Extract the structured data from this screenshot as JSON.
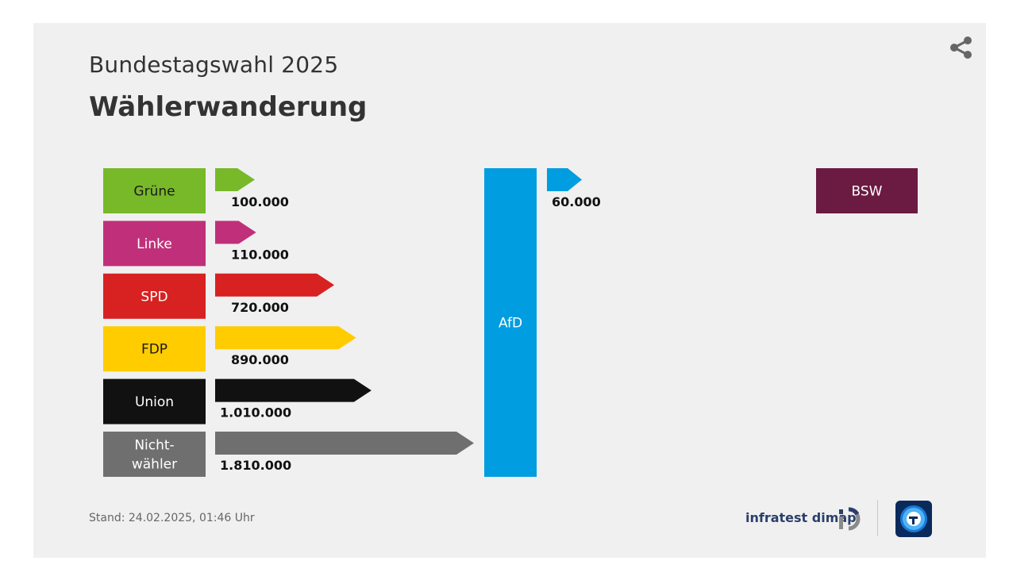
{
  "header": {
    "subtitle": "Bundestagswahl 2025",
    "title": "Wählerwanderung"
  },
  "footer": {
    "stand": "Stand:  24.02.2025, 01:46 Uhr",
    "source": "infratest dimap"
  },
  "icons": {
    "share": "share-icon",
    "infratest": "infratest-dimap-logo-icon",
    "tagesschau": "tagesschau-logo-icon"
  },
  "chart_data": {
    "type": "flow",
    "title": "Wählerwanderung",
    "target": {
      "label": "AfD",
      "color": "#009de0"
    },
    "series": [
      {
        "name": "Grüne",
        "value": 100000,
        "label": "100.000",
        "color": "#78b929",
        "textColor": "#1a1a1a",
        "direction": "to AfD"
      },
      {
        "name": "Linke",
        "value": 110000,
        "label": "110.000",
        "color": "#c0307a",
        "textColor": "#ffffff",
        "direction": "to AfD"
      },
      {
        "name": "SPD",
        "value": 720000,
        "label": "720.000",
        "color": "#d82121",
        "textColor": "#ffffff",
        "direction": "to AfD"
      },
      {
        "name": "FDP",
        "value": 890000,
        "label": "890.000",
        "color": "#ffcc00",
        "textColor": "#1a1a1a",
        "direction": "to AfD"
      },
      {
        "name": "Union",
        "value": 1010000,
        "label": "1.010.000",
        "color": "#111111",
        "textColor": "#ffffff",
        "direction": "to AfD"
      },
      {
        "name": "Nicht-\nwähler",
        "value": 1810000,
        "label": "1.810.000",
        "color": "#6f6f6f",
        "textColor": "#ffffff",
        "direction": "to AfD"
      }
    ],
    "outflows": [
      {
        "name": "BSW",
        "value": 60000,
        "label": "60.000",
        "color": "#6b1a42",
        "textColor": "#ffffff",
        "arrowColor": "#009de0",
        "direction": "from AfD"
      }
    ]
  }
}
